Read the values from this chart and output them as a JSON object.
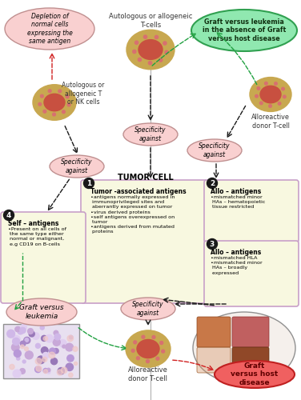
{
  "bg_color": "#ffffff",
  "cell_outer_color": "#c8a850",
  "cell_inner_color": "#c85040",
  "cell_spot_color": "#d87070",
  "ellipse_pink_face": "#f9d0d0",
  "ellipse_pink_edge": "#c09090",
  "ellipse_green_face": "#90e8b0",
  "ellipse_green_edge": "#30a050",
  "ellipse_red_face": "#f06060",
  "ellipse_red_edge": "#c02020",
  "box_face": "#f8f8e0",
  "box_edge": "#c8a0c8",
  "number_bg": "#1a1a1a",
  "number_fg": "#ffffff",
  "arrow_black": "#1a1a1a",
  "arrow_green": "#20a040",
  "arrow_red": "#d02020",
  "divider_color": "#b0b0b0",
  "texts": {
    "depletion": "Depletion of\nnormal cells\nexpressing the\nsame antigen",
    "autologous_nk": "Autologous or\nallogeneic T\nor NK cells",
    "autologous_tcell_top": "Autologous or allogeneic\nT-cells",
    "graft_vs_leukemia_top": "Graft versus leukemia\nin the absence of Graft\nversus host disease",
    "alloreactive_top": "Alloreactive\ndonor T-cell",
    "specificity": "Specificity\nagainst",
    "tumor_cell": "TUMOR CELL",
    "box1_title": "Tumor -associated antigens",
    "box1_bullets": "•antigens normally expressed in\n immunoprivileged sites and\n aberrantly expressed on tumor\n•virus derived proteins\n•self antigens overexpressed on\n tumor\n•antigens derived from mutated\n proteins",
    "box2_title": "Allo – antigens",
    "box2_bullets": "•mismatched minor\n HAs – hematopoietic\n tissue restricted",
    "box3_title": "Allo – antigens",
    "box3_bullets": "•mismatched HLA\n•mismatched minor\n HAs – broadly\n expressed",
    "box4_title": "Self – antigens",
    "box4_bullets": "•Present on all cells of\n the same type either\n normal or malignant,\n e.g CD19 on B-cells",
    "graft_vs_leukemia_left": "Graft versus\nleukemia",
    "alloreactive_bottom": "Alloreactive\ndonor T-cell",
    "graft_vs_host": "Graft\nversus host\ndisease"
  }
}
